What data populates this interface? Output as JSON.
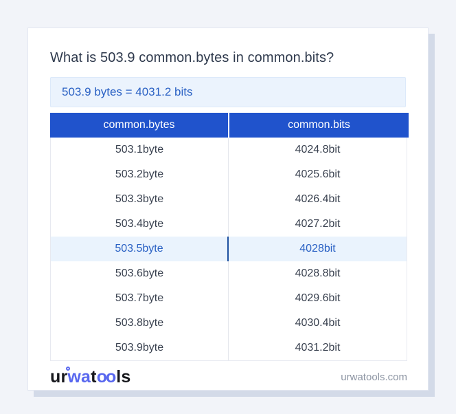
{
  "page": {
    "title": "What is 503.9 common.bytes in common.bits?",
    "result_text": "503.9 bytes = 4031.2 bits"
  },
  "table": {
    "headers": [
      "common.bytes",
      "common.bits"
    ],
    "highlight_index": 4,
    "rows": [
      {
        "bytes": "503.1byte",
        "bits": "4024.8bit"
      },
      {
        "bytes": "503.2byte",
        "bits": "4025.6bit"
      },
      {
        "bytes": "503.3byte",
        "bits": "4026.4bit"
      },
      {
        "bytes": "503.4byte",
        "bits": "4027.2bit"
      },
      {
        "bytes": "503.5byte",
        "bits": "4028bit"
      },
      {
        "bytes": "503.6byte",
        "bits": "4028.8bit"
      },
      {
        "bytes": "503.7byte",
        "bits": "4029.6bit"
      },
      {
        "bytes": "503.8byte",
        "bits": "4030.4bit"
      },
      {
        "bytes": "503.9byte",
        "bits": "4031.2bit"
      }
    ]
  },
  "footer": {
    "brand": {
      "seg1": "ur",
      "seg2": "wa",
      "seg3": "t",
      "seg4": "oo",
      "seg5": "ls"
    },
    "domain": "urwatools.com"
  },
  "colors": {
    "page_background": "#f2f4f9",
    "card_background": "#ffffff",
    "header_blue": "#2053cc",
    "result_box_background": "#ebf3fd",
    "accent_blue_text": "#2a61c4",
    "highlight_row_background": "#eaf3fd",
    "highlight_divider_blue": "#1d4f9f",
    "body_text": "#3a4250",
    "brand_blue": "#5968ef",
    "domain_text": "#8d95a3"
  }
}
